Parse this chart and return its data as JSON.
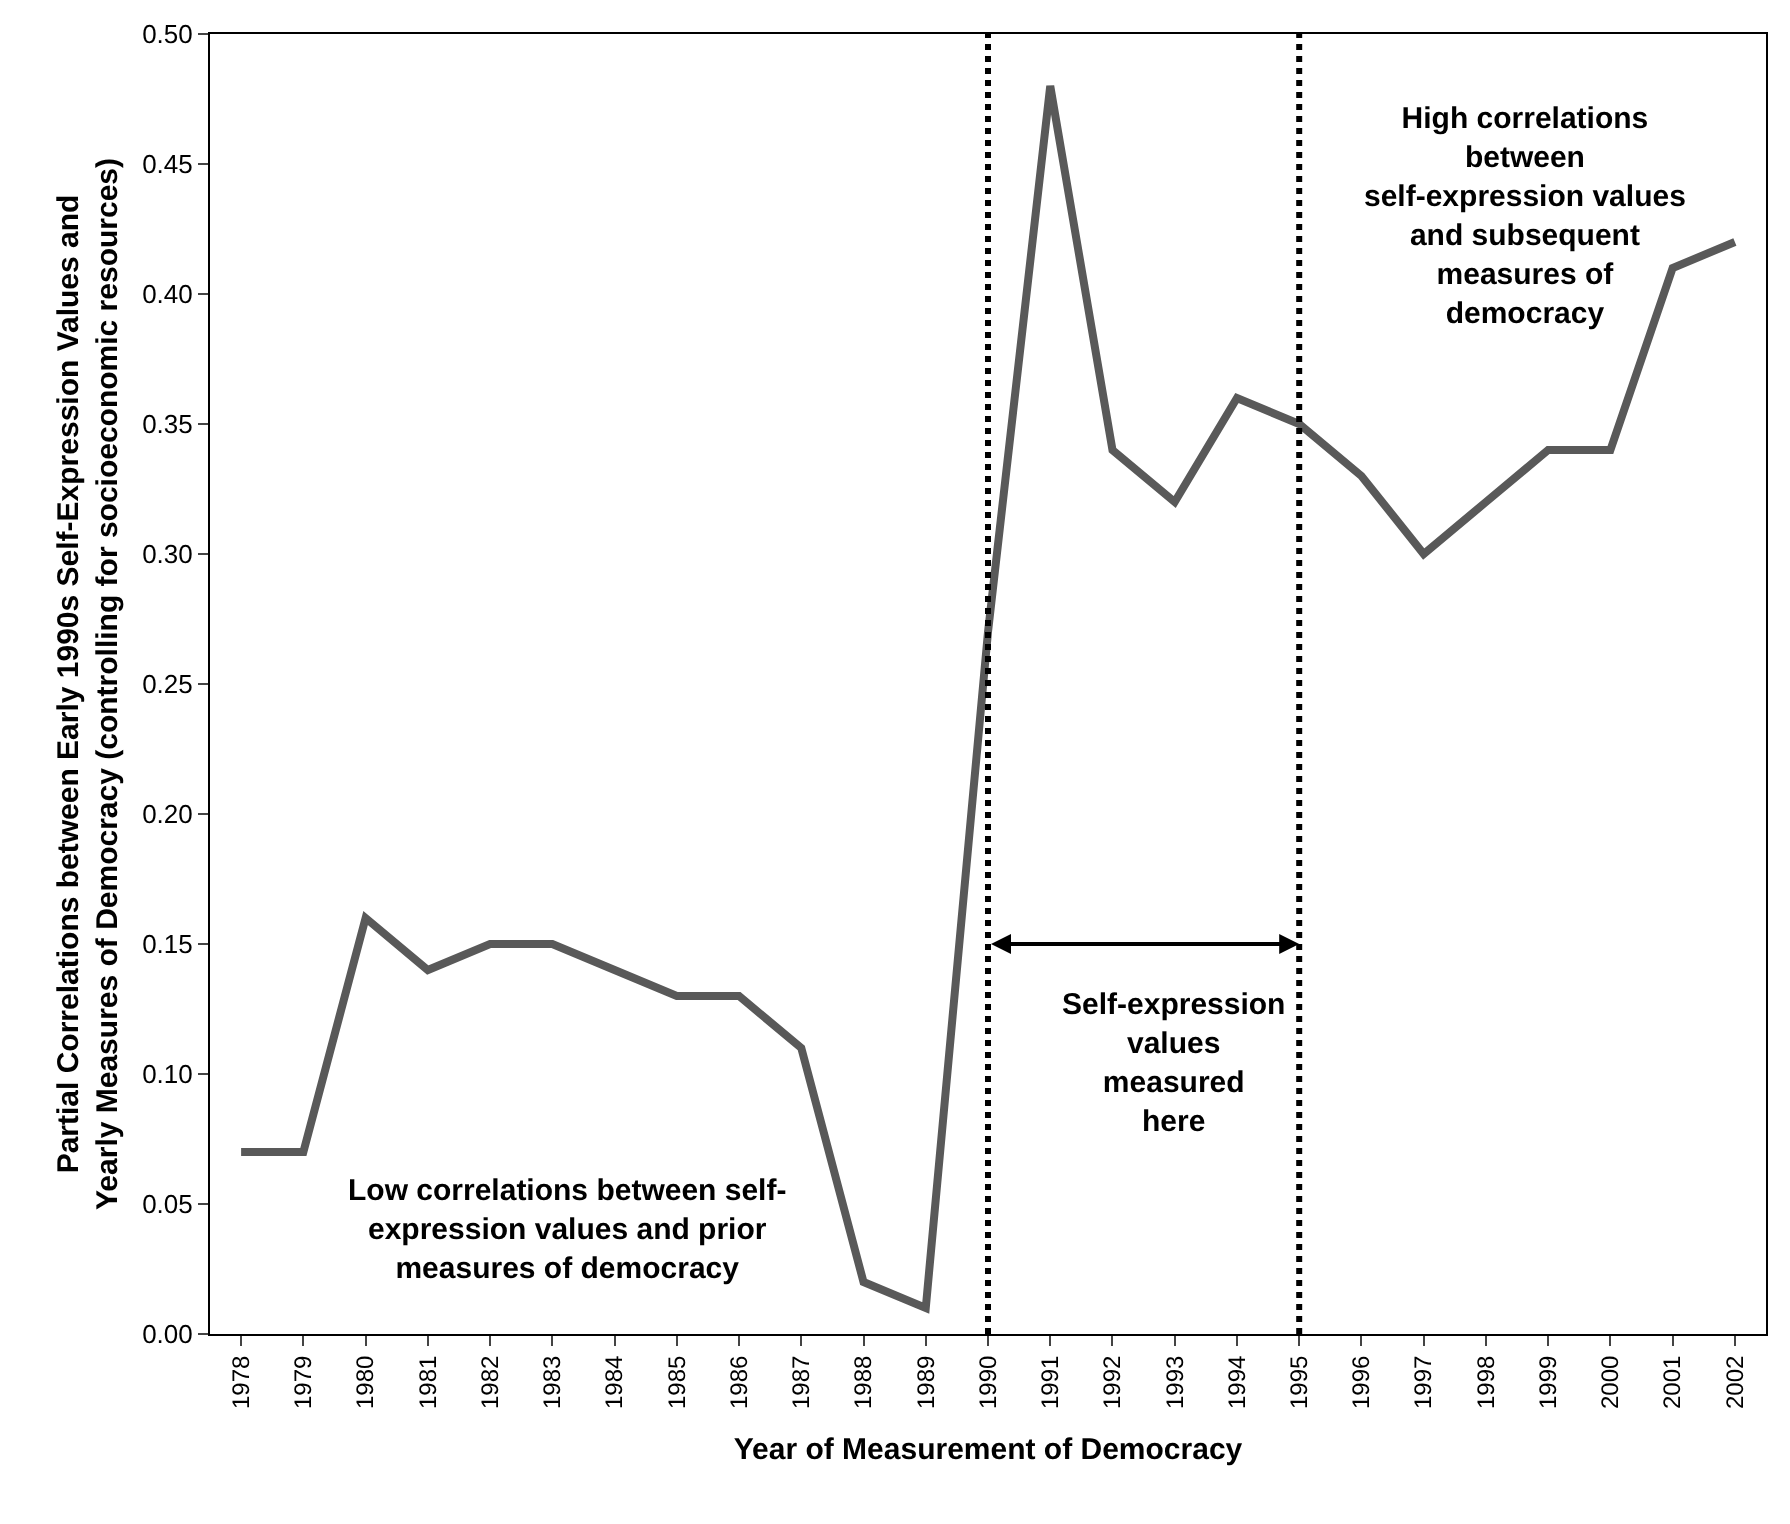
{
  "chart_data": {
    "type": "line",
    "xlabel": "Year of Measurement of Democracy",
    "ylabel": "Partial Correlations between Early 1990s Self-Expression Values and\nYearly Measures of Democracy (controlling for socioeconomic resources)",
    "categories": [
      "1978",
      "1979",
      "1980",
      "1981",
      "1982",
      "1983",
      "1984",
      "1985",
      "1986",
      "1987",
      "1988",
      "1989",
      "1990",
      "1991",
      "1992",
      "1993",
      "1994",
      "1995",
      "1996",
      "1997",
      "1998",
      "1999",
      "2000",
      "2001",
      "2002"
    ],
    "series": [
      {
        "color": "#595959",
        "values": [
          0.07,
          0.07,
          0.16,
          0.14,
          0.15,
          0.15,
          0.14,
          0.13,
          0.13,
          0.11,
          0.02,
          0.01,
          0.27,
          0.48,
          0.34,
          0.32,
          0.36,
          0.35,
          0.33,
          0.3,
          0.32,
          0.34,
          0.34,
          0.41,
          0.42
        ]
      }
    ],
    "ylim": [
      0,
      0.5
    ],
    "yticks": [
      {
        "value": 0,
        "label": "0.00"
      },
      {
        "value": 0.05,
        "label": "0.05"
      },
      {
        "value": 0.1,
        "label": "0.10"
      },
      {
        "value": 0.15,
        "label": "0.15"
      },
      {
        "value": 0.2,
        "label": "0.20"
      },
      {
        "value": 0.25,
        "label": "0.25"
      },
      {
        "value": 0.3,
        "label": "0.30"
      },
      {
        "value": 0.35,
        "label": "0.35"
      },
      {
        "value": 0.4,
        "label": "0.40"
      },
      {
        "value": 0.45,
        "label": "0.45"
      },
      {
        "value": 0.5,
        "label": "0.50"
      }
    ],
    "marker": "none",
    "line_style": "solid",
    "ref_lines": [
      {
        "axis": "x",
        "value": "1990",
        "line_style": "dotted",
        "color": "#000000"
      },
      {
        "axis": "x",
        "value": "1995",
        "line_style": "dotted",
        "color": "#000000"
      }
    ],
    "annotations": [
      "Self-expression\nvalues\nmeasured\nhere",
      "Low correlations between self-\nexpression values and prior\nmeasures of democracy",
      "High correlations\nbetween\nself-expression values\nand subsequent\nmeasures of\ndemocracy"
    ]
  }
}
